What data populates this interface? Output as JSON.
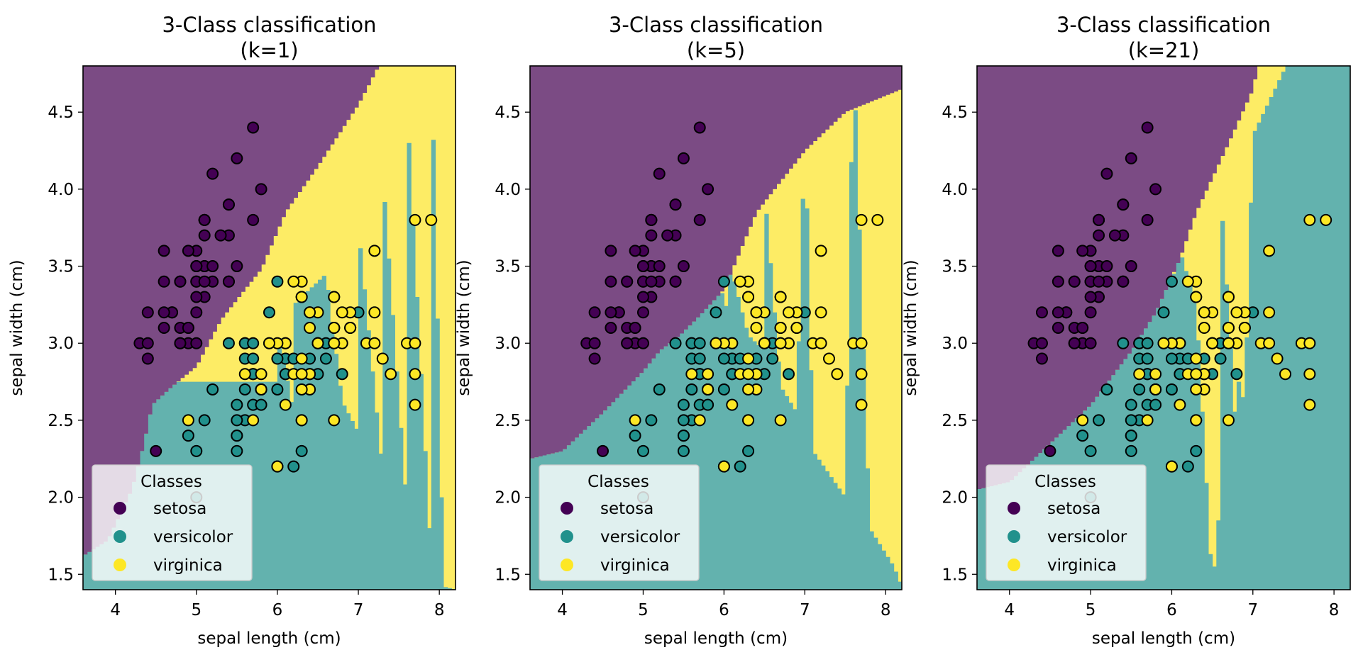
{
  "chart_data": [
    {
      "type": "scatter",
      "title": "3-Class classification\n(k=1)",
      "title_lines": [
        "3-Class classification",
        "(k=1)"
      ],
      "xlabel": "sepal length (cm)",
      "ylabel": "sepal width (cm)",
      "xlim": [
        3.6,
        8.2
      ],
      "ylim": [
        1.4,
        4.8
      ],
      "xticks": [
        "4",
        "5",
        "6",
        "7",
        "8"
      ],
      "yticks": [
        "1.5",
        "2.0",
        "2.5",
        "3.0",
        "3.5",
        "4.0",
        "4.5"
      ],
      "background": "decision regions",
      "grid": false,
      "legend": {
        "title": "Classes",
        "placement": "lower-left",
        "entries": [
          "setosa",
          "versicolor",
          "virginica"
        ]
      }
    },
    {
      "type": "scatter",
      "title": "3-Class classification\n(k=5)",
      "title_lines": [
        "3-Class classification",
        "(k=5)"
      ],
      "xlabel": "sepal length (cm)",
      "ylabel": "sepal width (cm)",
      "xlim": [
        3.6,
        8.2
      ],
      "ylim": [
        1.4,
        4.8
      ],
      "xticks": [
        "4",
        "5",
        "6",
        "7",
        "8"
      ],
      "yticks": [
        "1.5",
        "2.0",
        "2.5",
        "3.0",
        "3.5",
        "4.0",
        "4.5"
      ],
      "background": "decision regions",
      "grid": false,
      "legend": {
        "title": "Classes",
        "placement": "lower-left",
        "entries": [
          "setosa",
          "versicolor",
          "virginica"
        ]
      }
    },
    {
      "type": "scatter",
      "title": "3-Class classification\n(k=21)",
      "title_lines": [
        "3-Class classification",
        "(k=21)"
      ],
      "xlabel": "sepal length (cm)",
      "ylabel": "sepal width (cm)",
      "xlim": [
        3.6,
        8.2
      ],
      "ylim": [
        1.4,
        4.8
      ],
      "xticks": [
        "4",
        "5",
        "6",
        "7",
        "8"
      ],
      "yticks": [
        "1.5",
        "2.0",
        "2.5",
        "3.0",
        "3.5",
        "4.0",
        "4.5"
      ],
      "background": "decision regions",
      "grid": false,
      "legend": {
        "title": "Classes",
        "placement": "lower-left",
        "entries": [
          "setosa",
          "versicolor",
          "virginica"
        ]
      }
    }
  ],
  "classes": [
    "setosa",
    "versicolor",
    "virginica"
  ],
  "colors": {
    "setosa": "#440154",
    "versicolor": "#21918c",
    "virginica": "#fde725",
    "region_setosa": "#7b4b84",
    "region_versicolor": "#63b2ae",
    "region_virginica": "#fdec65",
    "point_edge": "#000000"
  },
  "points": {
    "setosa": [
      [
        5.1,
        3.5
      ],
      [
        4.9,
        3.0
      ],
      [
        4.7,
        3.2
      ],
      [
        4.6,
        3.1
      ],
      [
        5.0,
        3.6
      ],
      [
        5.4,
        3.9
      ],
      [
        4.6,
        3.4
      ],
      [
        5.0,
        3.4
      ],
      [
        4.4,
        2.9
      ],
      [
        4.9,
        3.1
      ],
      [
        5.4,
        3.7
      ],
      [
        4.8,
        3.4
      ],
      [
        4.8,
        3.0
      ],
      [
        4.3,
        3.0
      ],
      [
        5.8,
        4.0
      ],
      [
        5.7,
        4.4
      ],
      [
        5.4,
        3.9
      ],
      [
        5.1,
        3.5
      ],
      [
        5.7,
        3.8
      ],
      [
        5.1,
        3.8
      ],
      [
        5.4,
        3.4
      ],
      [
        5.1,
        3.7
      ],
      [
        4.6,
        3.6
      ],
      [
        5.1,
        3.3
      ],
      [
        4.8,
        3.4
      ],
      [
        5.0,
        3.0
      ],
      [
        5.0,
        3.4
      ],
      [
        5.2,
        3.5
      ],
      [
        5.2,
        3.4
      ],
      [
        4.7,
        3.2
      ],
      [
        4.8,
        3.1
      ],
      [
        5.4,
        3.4
      ],
      [
        5.2,
        4.1
      ],
      [
        5.5,
        4.2
      ],
      [
        4.9,
        3.1
      ],
      [
        5.0,
        3.2
      ],
      [
        5.5,
        3.5
      ],
      [
        4.9,
        3.6
      ],
      [
        4.4,
        3.0
      ],
      [
        5.1,
        3.4
      ],
      [
        5.0,
        3.5
      ],
      [
        4.5,
        2.3
      ],
      [
        4.4,
        3.2
      ],
      [
        5.0,
        3.5
      ],
      [
        5.1,
        3.8
      ],
      [
        4.8,
        3.0
      ],
      [
        5.1,
        3.8
      ],
      [
        4.6,
        3.2
      ],
      [
        5.3,
        3.7
      ],
      [
        5.0,
        3.3
      ]
    ],
    "versicolor": [
      [
        7.0,
        3.2
      ],
      [
        6.4,
        3.2
      ],
      [
        6.9,
        3.1
      ],
      [
        5.5,
        2.3
      ],
      [
        6.5,
        2.8
      ],
      [
        5.7,
        2.8
      ],
      [
        6.3,
        3.3
      ],
      [
        4.9,
        2.4
      ],
      [
        6.6,
        2.9
      ],
      [
        5.2,
        2.7
      ],
      [
        5.0,
        2.0
      ],
      [
        5.9,
        3.0
      ],
      [
        6.0,
        2.2
      ],
      [
        6.1,
        2.9
      ],
      [
        5.6,
        2.9
      ],
      [
        6.7,
        3.1
      ],
      [
        5.6,
        3.0
      ],
      [
        5.8,
        2.7
      ],
      [
        6.2,
        2.2
      ],
      [
        5.6,
        2.5
      ],
      [
        5.9,
        3.2
      ],
      [
        6.1,
        2.8
      ],
      [
        6.3,
        2.5
      ],
      [
        6.1,
        2.8
      ],
      [
        6.4,
        2.9
      ],
      [
        6.6,
        3.0
      ],
      [
        6.8,
        2.8
      ],
      [
        6.7,
        3.0
      ],
      [
        6.0,
        2.9
      ],
      [
        5.7,
        2.6
      ],
      [
        5.5,
        2.4
      ],
      [
        5.5,
        2.4
      ],
      [
        5.8,
        2.7
      ],
      [
        6.0,
        2.7
      ],
      [
        5.4,
        3.0
      ],
      [
        6.0,
        3.4
      ],
      [
        6.7,
        3.1
      ],
      [
        6.3,
        2.3
      ],
      [
        5.6,
        3.0
      ],
      [
        5.5,
        2.5
      ],
      [
        5.5,
        2.6
      ],
      [
        6.1,
        3.0
      ],
      [
        5.8,
        2.6
      ],
      [
        5.0,
        2.3
      ],
      [
        5.6,
        2.7
      ],
      [
        5.7,
        3.0
      ],
      [
        5.7,
        2.9
      ],
      [
        6.2,
        2.9
      ],
      [
        5.1,
        2.5
      ],
      [
        5.7,
        2.8
      ]
    ],
    "virginica": [
      [
        6.3,
        3.3
      ],
      [
        5.8,
        2.7
      ],
      [
        7.1,
        3.0
      ],
      [
        6.3,
        2.9
      ],
      [
        6.5,
        3.0
      ],
      [
        7.6,
        3.0
      ],
      [
        4.9,
        2.5
      ],
      [
        7.3,
        2.9
      ],
      [
        6.7,
        2.5
      ],
      [
        7.2,
        3.6
      ],
      [
        6.5,
        3.2
      ],
      [
        6.4,
        2.7
      ],
      [
        6.8,
        3.0
      ],
      [
        5.7,
        2.5
      ],
      [
        5.8,
        2.8
      ],
      [
        6.4,
        3.2
      ],
      [
        6.5,
        3.0
      ],
      [
        7.7,
        3.8
      ],
      [
        7.7,
        2.6
      ],
      [
        6.0,
        2.2
      ],
      [
        6.9,
        3.2
      ],
      [
        5.6,
        2.8
      ],
      [
        7.7,
        2.8
      ],
      [
        6.3,
        2.7
      ],
      [
        6.7,
        3.3
      ],
      [
        7.2,
        3.2
      ],
      [
        6.2,
        2.8
      ],
      [
        6.1,
        3.0
      ],
      [
        6.4,
        2.8
      ],
      [
        7.2,
        3.0
      ],
      [
        7.4,
        2.8
      ],
      [
        7.9,
        3.8
      ],
      [
        6.4,
        2.8
      ],
      [
        6.3,
        2.8
      ],
      [
        6.1,
        2.6
      ],
      [
        7.7,
        3.0
      ],
      [
        6.3,
        3.4
      ],
      [
        6.4,
        3.1
      ],
      [
        6.0,
        3.0
      ],
      [
        6.9,
        3.1
      ],
      [
        6.7,
        3.1
      ],
      [
        6.9,
        3.1
      ],
      [
        5.8,
        2.7
      ],
      [
        6.8,
        3.2
      ],
      [
        6.7,
        3.3
      ],
      [
        6.7,
        3.0
      ],
      [
        6.3,
        2.5
      ],
      [
        6.5,
        3.0
      ],
      [
        6.2,
        3.4
      ],
      [
        5.9,
        3.0
      ]
    ]
  }
}
